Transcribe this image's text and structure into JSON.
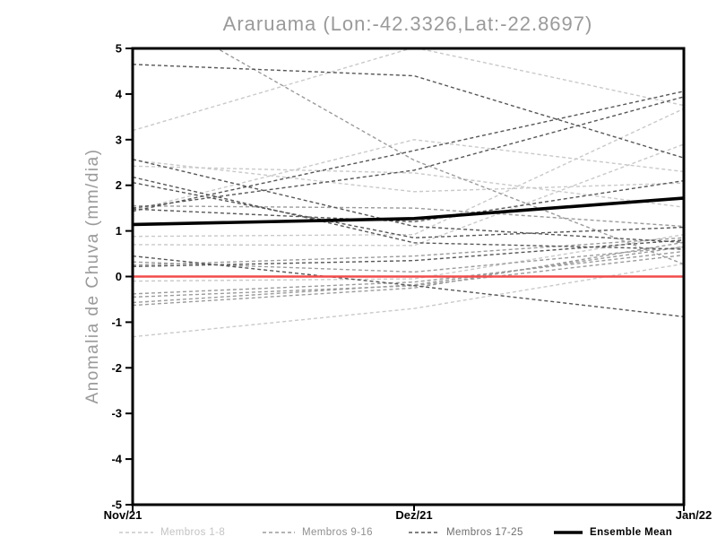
{
  "title": "Araruama (Lon:-42.3326,Lat:-22.8697)",
  "chart_data": {
    "type": "line",
    "title": "Araruama (Lon:-42.3326,Lat:-22.8697)",
    "xlabel": "",
    "ylabel": "Anomalia de Chuva (mm/dia)",
    "x_categories": [
      "Nov/21",
      "Dez/21",
      "Jan/22"
    ],
    "ylim": [
      -5,
      5
    ],
    "y_ticks": [
      5,
      4,
      3,
      2,
      1,
      0,
      -1,
      -2,
      -3,
      -4,
      -5
    ],
    "grid": false,
    "legend_position": "bottom",
    "zero_line": {
      "value": 0,
      "color": "#f24b4b"
    },
    "series": [
      {
        "name": "Membros 1-8",
        "color": "#c9c9c9",
        "text_color": "#c3c3c3",
        "style": "dashed",
        "members": [
          [
            3.2,
            5.02,
            3.75
          ],
          [
            2.55,
            1.86,
            2.05
          ],
          [
            2.42,
            2.27,
            1.52
          ],
          [
            1.45,
            3.0,
            2.3
          ],
          [
            0.88,
            0.92,
            3.68
          ],
          [
            0.7,
            0.68,
            2.9
          ],
          [
            -0.1,
            -0.05,
            0.92
          ],
          [
            -1.32,
            -0.7,
            0.28
          ]
        ]
      },
      {
        "name": "Membros 9-16",
        "color": "#9b9b9b",
        "text_color": "#8f8f8f",
        "style": "dashed",
        "members": [
          [
            6.05,
            2.55,
            0.27
          ],
          [
            1.55,
            1.5,
            1.1
          ],
          [
            0.32,
            0.1,
            0.65
          ],
          [
            0.25,
            0.45,
            0.85
          ],
          [
            -0.38,
            -0.12,
            0.55
          ],
          [
            -0.45,
            -0.2,
            0.47
          ],
          [
            -0.57,
            -0.18,
            0.65
          ],
          [
            -0.63,
            -0.25,
            0.75
          ]
        ]
      },
      {
        "name": "Membros 17-25",
        "color": "#565656",
        "text_color": "#6e6e6e",
        "style": "dashed",
        "members": [
          [
            4.65,
            4.4,
            2.6
          ],
          [
            2.57,
            1.1,
            0.75
          ],
          [
            2.18,
            0.74,
            0.6
          ],
          [
            2.06,
            0.85,
            1.08
          ],
          [
            1.5,
            2.33,
            3.94
          ],
          [
            1.43,
            2.76,
            4.06
          ],
          [
            1.48,
            1.2,
            2.1
          ],
          [
            0.45,
            -0.2,
            -0.88
          ],
          [
            0.22,
            0.35,
            0.8
          ]
        ]
      },
      {
        "name": "Ensemble Mean",
        "color": "#000000",
        "text_color": "#000000",
        "style": "solid",
        "values": [
          1.14,
          1.27,
          1.72
        ]
      }
    ]
  }
}
